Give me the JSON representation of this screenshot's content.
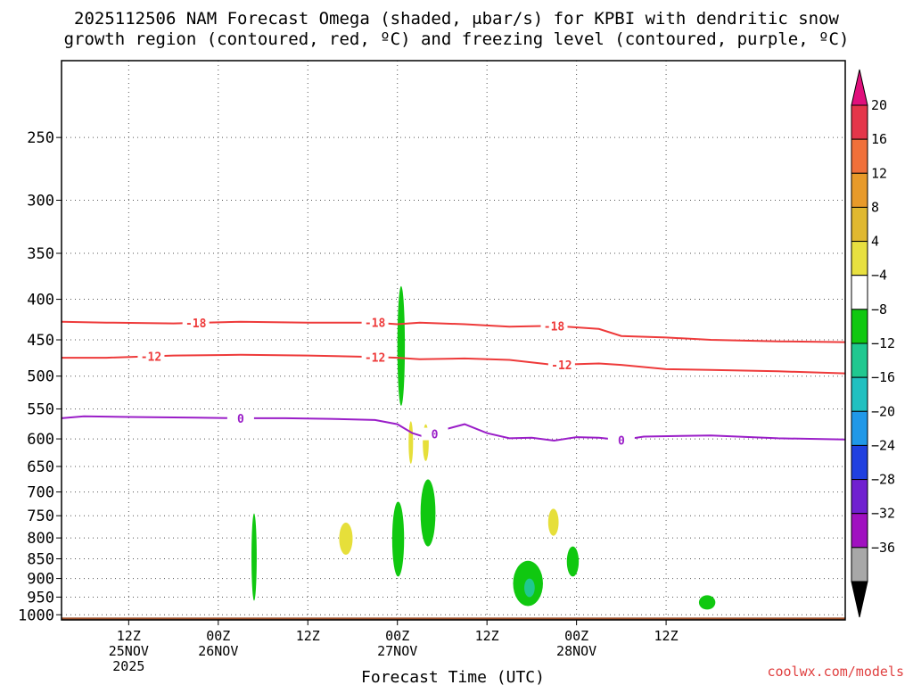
{
  "title": {
    "line1": "2025112506 NAM Forecast Omega (shaded, μbar/s) for KPBI with dendritic snow",
    "line2": "growth region (contoured, red, ºC) and freezing level (contoured, purple, ºC)"
  },
  "credit": "coolwx.com/models",
  "chart_data": {
    "type": "time-height",
    "xlabel": "Forecast Time (UTC)",
    "ylabel": "",
    "yscale": "log",
    "ylim": [
      1015,
      200
    ],
    "xlim_hours": [
      -9,
      96
    ],
    "y_ticks": [
      250,
      300,
      350,
      400,
      450,
      500,
      550,
      600,
      650,
      700,
      750,
      800,
      850,
      900,
      950,
      1000
    ],
    "x_ticks": [
      {
        "hour": 0,
        "label": "12Z",
        "date": "25NOV",
        "year": "2025"
      },
      {
        "hour": 12,
        "label": "00Z",
        "date": "26NOV",
        "year": ""
      },
      {
        "hour": 24,
        "label": "12Z",
        "date": "",
        "year": ""
      },
      {
        "hour": 36,
        "label": "00Z",
        "date": "27NOV",
        "year": ""
      },
      {
        "hour": 48,
        "label": "12Z",
        "date": "",
        "year": ""
      },
      {
        "hour": 60,
        "label": "00Z",
        "date": "28NOV",
        "year": ""
      },
      {
        "hour": 72,
        "label": "12Z",
        "date": "",
        "year": ""
      }
    ],
    "grid": true,
    "colorbar": {
      "labels": [
        "20",
        "16",
        "12",
        "8",
        "4",
        "−4",
        "−8",
        "−12",
        "−16",
        "−20",
        "−24",
        "−28",
        "−32",
        "−36"
      ],
      "colors": [
        "#e4364a",
        "#f0703a",
        "#e89a2a",
        "#e0b830",
        "#e8e040",
        "#ffffff",
        "#10c810",
        "#20c890",
        "#20c0c0",
        "#2098e8",
        "#2040e0",
        "#7020d0",
        "#a010c0",
        "#a8a8a8"
      ],
      "top_arrow_color": "#e0107c",
      "bottom_arrow_color": "#000000"
    },
    "contours": [
      {
        "label": "-18",
        "color": "#ee3a3a",
        "points": [
          [
            -9,
            427
          ],
          [
            -3,
            428
          ],
          [
            6,
            429
          ],
          [
            15,
            427
          ],
          [
            24,
            428
          ],
          [
            33,
            428
          ],
          [
            36,
            430
          ],
          [
            39,
            428
          ],
          [
            45,
            430
          ],
          [
            51,
            433
          ],
          [
            57,
            432
          ],
          [
            63,
            436
          ],
          [
            66,
            445
          ],
          [
            72,
            447
          ],
          [
            78,
            450
          ],
          [
            87,
            452
          ],
          [
            96,
            453
          ]
        ],
        "label_hours": [
          9,
          33,
          57
        ]
      },
      {
        "label": "-12",
        "color": "#ee3a3a",
        "points": [
          [
            -9,
            474
          ],
          [
            -3,
            474
          ],
          [
            6,
            471
          ],
          [
            15,
            470
          ],
          [
            24,
            471
          ],
          [
            33,
            473
          ],
          [
            36,
            474
          ],
          [
            39,
            476
          ],
          [
            45,
            475
          ],
          [
            51,
            477
          ],
          [
            57,
            484
          ],
          [
            63,
            482
          ],
          [
            66,
            484
          ],
          [
            72,
            490
          ],
          [
            78,
            491
          ],
          [
            87,
            493
          ],
          [
            96,
            496
          ]
        ],
        "label_hours": [
          3,
          33,
          58
        ]
      },
      {
        "label": "0",
        "color": "#9a1ec8",
        "points": [
          [
            -9,
            565
          ],
          [
            -6,
            562
          ],
          [
            0,
            563
          ],
          [
            9,
            564
          ],
          [
            15,
            565
          ],
          [
            21,
            565
          ],
          [
            27,
            566
          ],
          [
            33,
            568
          ],
          [
            36,
            575
          ],
          [
            38,
            590
          ],
          [
            40,
            598
          ],
          [
            42,
            585
          ],
          [
            45,
            575
          ],
          [
            48,
            590
          ],
          [
            51,
            599
          ],
          [
            54,
            598
          ],
          [
            57,
            603
          ],
          [
            60,
            597
          ],
          [
            63,
            598
          ],
          [
            66,
            602
          ],
          [
            69,
            596
          ],
          [
            78,
            594
          ],
          [
            87,
            599
          ],
          [
            96,
            601
          ]
        ],
        "label_hours": [
          15,
          41,
          66
        ]
      }
    ],
    "omega_regions": [
      {
        "value": -6,
        "color": "#10c810",
        "hour": 36.5,
        "p_top": 385,
        "p_bottom": 545,
        "width_hours": 1.0
      },
      {
        "value": 6,
        "color": "#e6df3a",
        "hour": 37.8,
        "p_top": 570,
        "p_bottom": 645,
        "width_hours": 0.6
      },
      {
        "value": 6,
        "color": "#e6df3a",
        "hour": 39.8,
        "p_top": 575,
        "p_bottom": 640,
        "width_hours": 0.8
      },
      {
        "value": -6,
        "color": "#10c810",
        "hour": 16.8,
        "p_top": 745,
        "p_bottom": 960,
        "width_hours": 0.7
      },
      {
        "value": 6,
        "color": "#e6df3a",
        "hour": 29.1,
        "p_top": 765,
        "p_bottom": 840,
        "width_hours": 1.8
      },
      {
        "value": -6,
        "color": "#10c810",
        "hour": 36.1,
        "p_top": 720,
        "p_bottom": 895,
        "width_hours": 1.6
      },
      {
        "value": -6,
        "color": "#10c810",
        "hour": 40.1,
        "p_top": 675,
        "p_bottom": 820,
        "width_hours": 2.0
      },
      {
        "value": 6,
        "color": "#e6df3a",
        "hour": 56.9,
        "p_top": 735,
        "p_bottom": 795,
        "width_hours": 1.4
      },
      {
        "value": -6,
        "color": "#10c810",
        "hour": 59.5,
        "p_top": 820,
        "p_bottom": 895,
        "width_hours": 1.6
      },
      {
        "value": -6,
        "color": "#10c810",
        "hour": 53.5,
        "p_top": 855,
        "p_bottom": 975,
        "width_hours": 4.0
      },
      {
        "value": -10,
        "color": "#20c890",
        "hour": 53.7,
        "p_top": 900,
        "p_bottom": 950,
        "width_hours": 1.4
      },
      {
        "value": -6,
        "color": "#10c810",
        "hour": 77.5,
        "p_top": 945,
        "p_bottom": 985,
        "width_hours": 2.2
      }
    ],
    "terrain": {
      "color": "#a0522d",
      "top_pressure": 1008
    }
  }
}
